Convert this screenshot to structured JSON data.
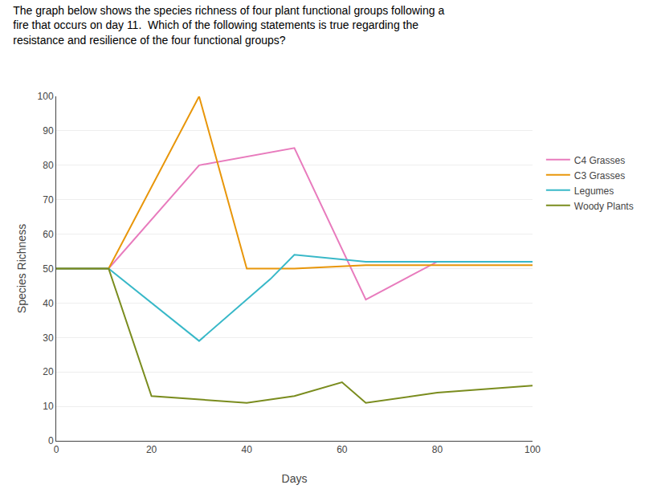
{
  "chart_data": {
    "type": "line",
    "title": "The graph below shows the species richness of four plant functional groups following a\nfire that occurs on day 11.  Which of the following statements is true regarding the\nresistance and resilience of the four functional groups?",
    "x_label": "Days",
    "y_label": "Species Richness",
    "xlim": [
      0,
      100
    ],
    "ylim": [
      0,
      100
    ],
    "xticks": [
      0,
      20,
      40,
      60,
      80,
      100
    ],
    "yticks": [
      0,
      10,
      20,
      30,
      40,
      50,
      60,
      70,
      80,
      90,
      100
    ],
    "grid": "y",
    "legend": "right",
    "series": [
      {
        "name": "C4 Grasses",
        "color": "#e87bbd",
        "x": [
          0,
          11,
          30,
          50,
          65,
          80,
          100
        ],
        "values": [
          50,
          50,
          80,
          85,
          41,
          52,
          52
        ]
      },
      {
        "name": "C3 Grasses",
        "color": "#e8960a",
        "x": [
          0,
          11,
          30,
          40,
          50,
          65,
          80,
          100
        ],
        "values": [
          50,
          50,
          100,
          50,
          50,
          51,
          51,
          51
        ]
      },
      {
        "name": "Legumes",
        "color": "#38b8c8",
        "x": [
          0,
          11,
          30,
          45,
          50,
          65,
          80,
          100
        ],
        "values": [
          50,
          50,
          29,
          47,
          54,
          52,
          52,
          52
        ]
      },
      {
        "name": "Woody Plants",
        "color": "#7a8c1e",
        "x": [
          0,
          11,
          20,
          30,
          40,
          50,
          60,
          65,
          80,
          100
        ],
        "values": [
          50,
          50,
          13,
          12,
          11,
          13,
          17,
          11,
          14,
          16
        ]
      }
    ]
  }
}
